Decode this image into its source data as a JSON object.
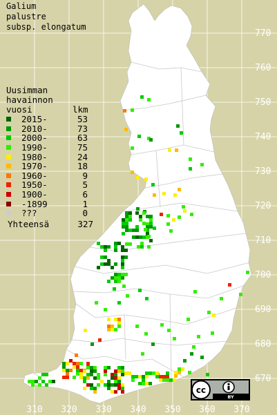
{
  "title": [
    "Galium",
    "palustre",
    "subsp. elongatum"
  ],
  "legend": {
    "header": [
      "Uusimman",
      "havainnon"
    ],
    "col_year": "vuosi",
    "col_count": "lkm",
    "items": [
      {
        "label": "2015-",
        "count": "53",
        "color": "#006400"
      },
      {
        "label": "2010-",
        "count": "73",
        "color": "#009900"
      },
      {
        "label": "2000-",
        "count": "63",
        "color": "#00cc00"
      },
      {
        "label": "1990-",
        "count": "75",
        "color": "#33ee00"
      },
      {
        "label": "1980-",
        "count": "24",
        "color": "#ffee00"
      },
      {
        "label": "1970-",
        "count": "18",
        "color": "#ffbb00"
      },
      {
        "label": "1960-",
        "count": "9",
        "color": "#ff7700"
      },
      {
        "label": "1950-",
        "count": "5",
        "color": "#ee2200"
      },
      {
        "label": "1900-",
        "count": "6",
        "color": "#cc0000"
      },
      {
        "label": "-1899",
        "count": "1",
        "color": "#880000"
      },
      {
        "label": "???",
        "count": "0",
        "color": "#cccccc"
      }
    ],
    "total_label": "Yhteensä",
    "total_count": "327"
  },
  "x_axis": [
    "310",
    "320",
    "330",
    "340",
    "350",
    "360",
    "370"
  ],
  "y_axis": [
    "770",
    "760",
    "750",
    "740",
    "730",
    "720",
    "710",
    "700",
    "690",
    "680",
    "670"
  ],
  "map_colors": {
    "land": "#ffffff",
    "background": "#d6d3a8",
    "grid": "#ffffff",
    "axis_text": "#ffffff",
    "borders": "#c8c8c8"
  },
  "badge": {
    "by_label": "BY"
  }
}
